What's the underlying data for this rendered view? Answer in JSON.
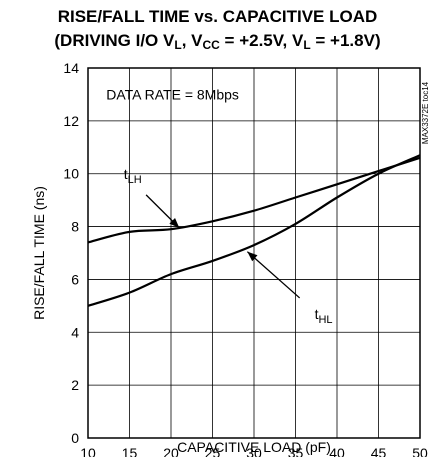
{
  "chart_data": {
    "type": "line",
    "title": {
      "line1": "RISE/FALL TIME vs. CAPACITIVE LOAD",
      "line2_parts": [
        {
          "text": "(DRIVING I/O V",
          "sub": false
        },
        {
          "text": "L",
          "sub": true
        },
        {
          "text": ", V",
          "sub": false
        },
        {
          "text": "CC",
          "sub": true
        },
        {
          "text": " = +2.5V, V",
          "sub": false
        },
        {
          "text": "L",
          "sub": true
        },
        {
          "text": " = +1.8V)",
          "sub": false
        }
      ]
    },
    "xlabel": "CAPACITIVE LOAD (pF)",
    "ylabel": "RISE/FALL TIME (ns)",
    "xlim": [
      10,
      50
    ],
    "ylim": [
      0,
      14
    ],
    "xticks": [
      10,
      15,
      20,
      25,
      30,
      35,
      40,
      45,
      50
    ],
    "yticks": [
      0,
      2,
      4,
      6,
      8,
      10,
      12,
      14
    ],
    "grid": true,
    "annotation": "DATA RATE = 8Mbps",
    "side_label": "MAX3372E toc14",
    "series": [
      {
        "name": "tLH",
        "label_main": "t",
        "label_sub": "LH",
        "x": [
          10,
          15,
          20,
          25,
          30,
          35,
          40,
          45,
          50
        ],
        "y": [
          7.4,
          7.8,
          7.9,
          8.2,
          8.6,
          9.1,
          9.6,
          10.1,
          10.6
        ]
      },
      {
        "name": "tHL",
        "label_main": "t",
        "label_sub": "HL",
        "x": [
          10,
          15,
          20,
          25,
          30,
          35,
          40,
          45,
          50
        ],
        "y": [
          5.0,
          5.5,
          6.2,
          6.7,
          7.3,
          8.1,
          9.1,
          10.0,
          10.7
        ]
      }
    ]
  }
}
